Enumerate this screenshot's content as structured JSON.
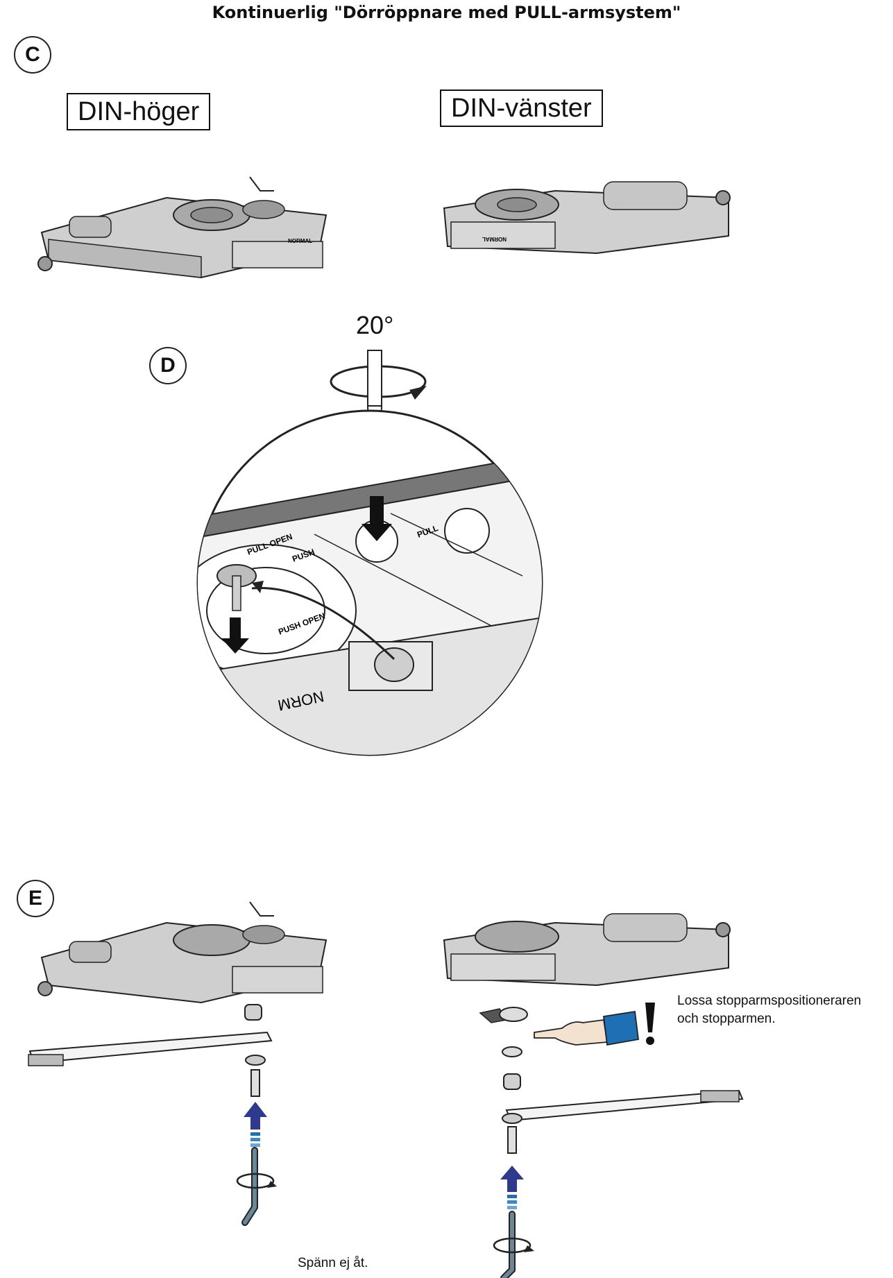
{
  "header": {
    "title": "Kontinuerlig \"Dörröppnare med PULL-armsystem\""
  },
  "section_c": {
    "badge": "C",
    "left_label": "DIN-höger",
    "right_label": "DIN-vänster",
    "unit_label_left": "NORMAL",
    "unit_label_right": "NORMAL"
  },
  "section_d": {
    "badge": "D",
    "angle": "20°",
    "detail_labels": {
      "pull_open": "PULL OPEN",
      "push": "PUSH",
      "pull": "PULL",
      "push_open": "PUSH OPEN",
      "normal": "NORM"
    }
  },
  "section_e": {
    "badge": "E",
    "note_line1": "Lossa stopparmspositioneraren",
    "note_line2": "och stopparmen.",
    "caption": "Spänn ej åt."
  },
  "colors": {
    "arrow_blue": "#2f3a8f",
    "sleeve_blue": "#1f6fb4",
    "outline": "#222222"
  }
}
